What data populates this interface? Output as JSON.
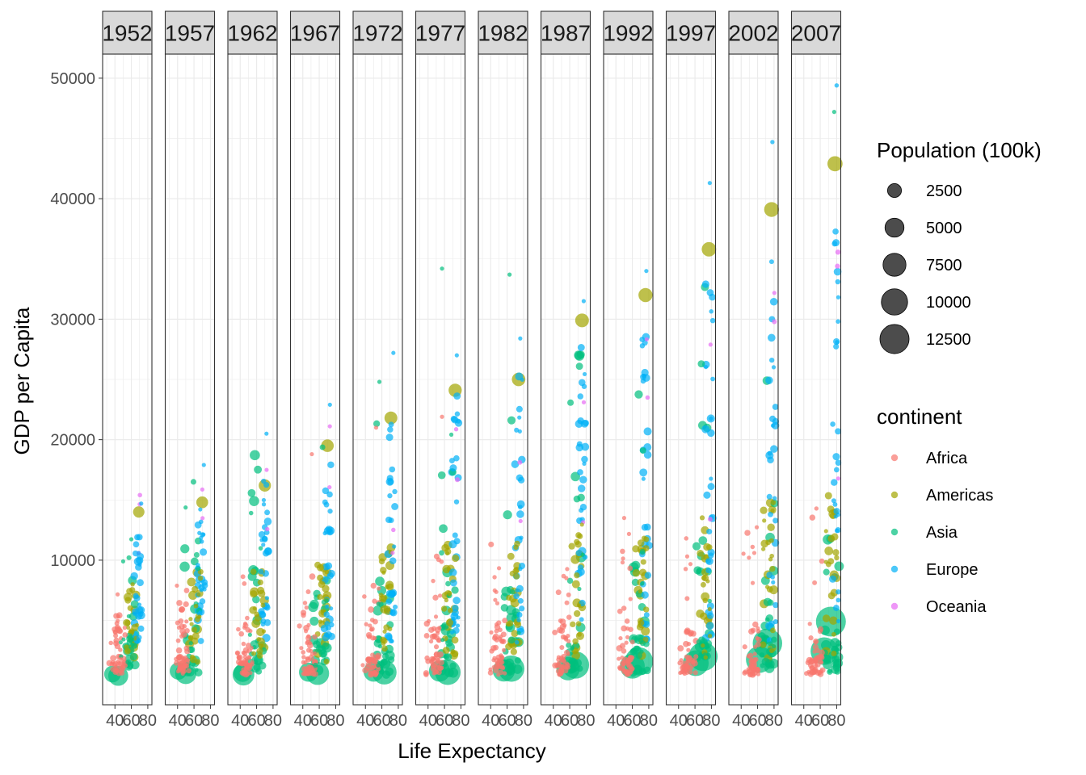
{
  "chart_data": {
    "type": "scatter",
    "facet_by": "year",
    "facets": [
      "1952",
      "1957",
      "1962",
      "1967",
      "1972",
      "1977",
      "1982",
      "1987",
      "1992",
      "1997",
      "2002",
      "2007"
    ],
    "xlabel": "Life Expectancy",
    "ylabel": "GDP per Capita",
    "xlim": [
      25,
      85
    ],
    "ylim": [
      -2000,
      52000
    ],
    "x_ticks": [
      40,
      60,
      80
    ],
    "y_ticks": [
      10000,
      20000,
      30000,
      40000,
      50000
    ],
    "grid": true,
    "size_legend": {
      "title": "Population (100k)",
      "values": [
        2500,
        5000,
        7500,
        10000,
        12500
      ],
      "labels": [
        "2500",
        "5000",
        "7500",
        "10000",
        "12500"
      ]
    },
    "color_legend": {
      "title": "continent",
      "entries": [
        {
          "name": "Africa",
          "color": "#F8766D"
        },
        {
          "name": "Americas",
          "color": "#A3A500"
        },
        {
          "name": "Asia",
          "color": "#00BF7D"
        },
        {
          "name": "Europe",
          "color": "#00B0F6"
        },
        {
          "name": "Oceania",
          "color": "#E76BF3"
        }
      ]
    },
    "legend_position": "right",
    "highlight_points": [
      {
        "year": "1952",
        "continent": "Americas",
        "x": 69,
        "y": 14000,
        "pop": 1580
      },
      {
        "year": "1952",
        "continent": "Europe",
        "x": 72,
        "y": 14700,
        "pop": 36
      },
      {
        "year": "1952",
        "continent": "Oceania",
        "x": 69,
        "y": 10600,
        "pop": 86
      },
      {
        "year": "1952",
        "continent": "Asia",
        "x": 50,
        "y": 9900,
        "pop": 1
      },
      {
        "year": "1952",
        "continent": "Asia",
        "x": 44,
        "y": 400,
        "pop": 5560
      },
      {
        "year": "1952",
        "continent": "Asia",
        "x": 37,
        "y": 550,
        "pop": 3720
      },
      {
        "year": "1957",
        "continent": "Americas",
        "x": 70,
        "y": 14800,
        "pop": 1720
      },
      {
        "year": "1957",
        "continent": "Europe",
        "x": 72,
        "y": 17900,
        "pop": 36
      },
      {
        "year": "1957",
        "continent": "Asia",
        "x": 50,
        "y": 600,
        "pop": 6370
      },
      {
        "year": "1957",
        "continent": "Asia",
        "x": 41,
        "y": 800,
        "pop": 4090
      },
      {
        "year": "1962",
        "continent": "Americas",
        "x": 70,
        "y": 16200,
        "pop": 1870
      },
      {
        "year": "1962",
        "continent": "Europe",
        "x": 72,
        "y": 20500,
        "pop": 56
      },
      {
        "year": "1962",
        "continent": "Asia",
        "x": 44,
        "y": 500,
        "pop": 6650
      },
      {
        "year": "1962",
        "continent": "Asia",
        "x": 43,
        "y": 650,
        "pop": 4540
      },
      {
        "year": "1967",
        "continent": "Americas",
        "x": 70,
        "y": 19500,
        "pop": 1990
      },
      {
        "year": "1967",
        "continent": "Europe",
        "x": 73,
        "y": 22900,
        "pop": 42
      },
      {
        "year": "1967",
        "continent": "Africa",
        "x": 51,
        "y": 18800,
        "pop": 10
      },
      {
        "year": "1967",
        "continent": "Asia",
        "x": 58,
        "y": 600,
        "pop": 7550
      },
      {
        "year": "1967",
        "continent": "Asia",
        "x": 47,
        "y": 700,
        "pop": 5060
      },
      {
        "year": "1972",
        "continent": "Americas",
        "x": 71,
        "y": 21800,
        "pop": 2100
      },
      {
        "year": "1972",
        "continent": "Europe",
        "x": 74,
        "y": 27200,
        "pop": 50
      },
      {
        "year": "1972",
        "continent": "Asia",
        "x": 57,
        "y": 24800,
        "pop": 10
      },
      {
        "year": "1972",
        "continent": "Africa",
        "x": 53,
        "y": 21000,
        "pop": 20
      },
      {
        "year": "1972",
        "continent": "Asia",
        "x": 63,
        "y": 700,
        "pop": 8620
      },
      {
        "year": "1972",
        "continent": "Asia",
        "x": 50,
        "y": 750,
        "pop": 5670
      },
      {
        "year": "1977",
        "continent": "Americas",
        "x": 73,
        "y": 24100,
        "pop": 2200
      },
      {
        "year": "1977",
        "continent": "Europe",
        "x": 75,
        "y": 27000,
        "pop": 60
      },
      {
        "year": "1977",
        "continent": "Asia",
        "x": 57,
        "y": 34200,
        "pop": 12
      },
      {
        "year": "1977",
        "continent": "Africa",
        "x": 57,
        "y": 21900,
        "pop": 25
      },
      {
        "year": "1977",
        "continent": "Asia",
        "x": 64,
        "y": 700,
        "pop": 9430
      },
      {
        "year": "1977",
        "continent": "Asia",
        "x": 54,
        "y": 800,
        "pop": 6340
      },
      {
        "year": "1982",
        "continent": "Americas",
        "x": 74,
        "y": 25000,
        "pop": 2320
      },
      {
        "year": "1982",
        "continent": "Europe",
        "x": 76,
        "y": 28400,
        "pop": 70
      },
      {
        "year": "1982",
        "continent": "Asia",
        "x": 63,
        "y": 33700,
        "pop": 15
      },
      {
        "year": "1982",
        "continent": "Asia",
        "x": 65,
        "y": 1000,
        "pop": 10000
      },
      {
        "year": "1982",
        "continent": "Asia",
        "x": 56,
        "y": 850,
        "pop": 7080
      },
      {
        "year": "1987",
        "continent": "Americas",
        "x": 75,
        "y": 29900,
        "pop": 2430
      },
      {
        "year": "1987",
        "continent": "Europe",
        "x": 77,
        "y": 31500,
        "pop": 80
      },
      {
        "year": "1987",
        "continent": "Asia",
        "x": 67,
        "y": 1300,
        "pop": 10840
      },
      {
        "year": "1987",
        "continent": "Asia",
        "x": 58,
        "y": 1000,
        "pop": 7880
      },
      {
        "year": "1992",
        "continent": "Americas",
        "x": 76,
        "y": 32000,
        "pop": 2560
      },
      {
        "year": "1992",
        "continent": "Europe",
        "x": 77,
        "y": 34000,
        "pop": 90
      },
      {
        "year": "1992",
        "continent": "Africa",
        "x": 50,
        "y": 13500,
        "pop": 30
      },
      {
        "year": "1992",
        "continent": "Asia",
        "x": 68,
        "y": 1600,
        "pop": 11640
      },
      {
        "year": "1992",
        "continent": "Asia",
        "x": 60,
        "y": 1200,
        "pop": 8890
      },
      {
        "year": "1997",
        "continent": "Americas",
        "x": 77,
        "y": 35800,
        "pop": 2730
      },
      {
        "year": "1997",
        "continent": "Europe",
        "x": 78,
        "y": 41300,
        "pop": 100
      },
      {
        "year": "1997",
        "continent": "Asia",
        "x": 70,
        "y": 2000,
        "pop": 12300
      },
      {
        "year": "1997",
        "continent": "Asia",
        "x": 61,
        "y": 1450,
        "pop": 9590
      },
      {
        "year": "2002",
        "continent": "Americas",
        "x": 77,
        "y": 39100,
        "pop": 2880
      },
      {
        "year": "2002",
        "continent": "Europe",
        "x": 78,
        "y": 44700,
        "pop": 120
      },
      {
        "year": "2002",
        "continent": "Asia",
        "x": 72,
        "y": 3100,
        "pop": 12800
      },
      {
        "year": "2002",
        "continent": "Asia",
        "x": 62,
        "y": 1750,
        "pop": 10340
      },
      {
        "year": "2007",
        "continent": "Americas",
        "x": 78,
        "y": 42900,
        "pop": 3010
      },
      {
        "year": "2007",
        "continent": "Europe",
        "x": 80,
        "y": 49400,
        "pop": 130
      },
      {
        "year": "2007",
        "continent": "Asia",
        "x": 77,
        "y": 47200,
        "pop": 40
      },
      {
        "year": "2007",
        "continent": "Asia",
        "x": 73,
        "y": 4900,
        "pop": 13190
      },
      {
        "year": "2007",
        "continent": "Asia",
        "x": 65,
        "y": 2450,
        "pop": 11100
      },
      {
        "year": "2007",
        "continent": "Oceania",
        "x": 81,
        "y": 34400,
        "pop": 200
      }
    ]
  }
}
